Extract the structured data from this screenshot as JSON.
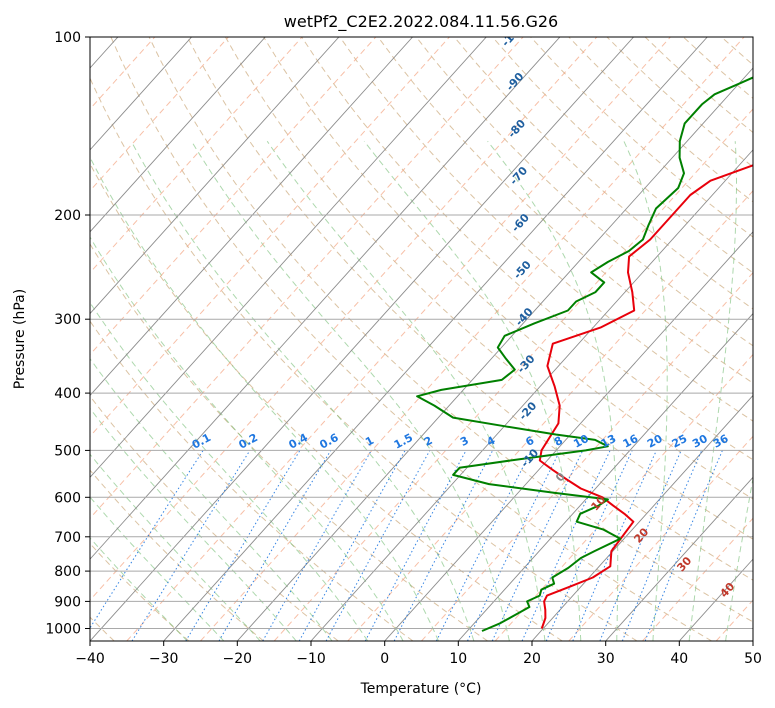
{
  "chart_data": {
    "type": "line",
    "subtype": "skew-t log-p",
    "title": "wetPf2_C2E2.2022.084.11.56.G26",
    "xlabel": "Temperature (°C)",
    "ylabel": "Pressure (hPa)",
    "xlim": [
      -40,
      50
    ],
    "ylim": [
      1050,
      100
    ],
    "yscale": "log",
    "grid": true,
    "x_ticks": [
      -40,
      -30,
      -20,
      -10,
      0,
      10,
      20,
      30,
      40,
      50
    ],
    "y_ticks": [
      100,
      200,
      300,
      400,
      500,
      600,
      700,
      800,
      900,
      1000
    ],
    "dry_adiabat_labels": [
      "-100",
      "-90",
      "-80",
      "-70",
      "-60",
      "-50",
      "-40",
      "-30",
      "-20",
      "-10",
      "0",
      "10",
      "20",
      "30",
      "40"
    ],
    "mixing_ratio_labels": [
      "0.1",
      "0.2",
      "0.4",
      "0.6",
      "1",
      "1.5",
      "2",
      "3",
      "4",
      "6",
      "8",
      "10",
      "13",
      "16",
      "20",
      "25",
      "30",
      "36"
    ],
    "series": [
      {
        "name": "",
        "color": "#e8000b",
        "points": [
          [
            19.8,
            1000
          ],
          [
            19,
            960
          ],
          [
            18,
            930
          ],
          [
            16.8,
            900
          ],
          [
            16.5,
            880
          ],
          [
            18.5,
            850
          ],
          [
            20.5,
            820
          ],
          [
            21.5,
            785
          ],
          [
            19.8,
            740
          ],
          [
            19.5,
            700
          ],
          [
            19.2,
            660
          ],
          [
            17,
            640
          ],
          [
            14.5,
            620
          ],
          [
            12,
            600
          ],
          [
            8,
            580
          ],
          [
            5,
            560
          ],
          [
            2,
            540
          ],
          [
            -1,
            520
          ],
          [
            -2,
            500
          ],
          [
            -3,
            450
          ],
          [
            -5,
            420
          ],
          [
            -8,
            390
          ],
          [
            -11.5,
            360
          ],
          [
            -13.5,
            330
          ],
          [
            -9,
            310
          ],
          [
            -6.5,
            290
          ],
          [
            -9,
            270
          ],
          [
            -12,
            250
          ],
          [
            -13.8,
            235
          ],
          [
            -13,
            220
          ],
          [
            -13,
            200
          ],
          [
            -13,
            185
          ],
          [
            -12,
            175
          ],
          [
            -7,
            162
          ],
          [
            -4.5,
            150
          ],
          [
            -6,
            140
          ],
          [
            -8,
            130
          ],
          [
            -10,
            120
          ],
          [
            -11,
            110
          ],
          [
            -13,
            100
          ]
        ]
      },
      {
        "name": "",
        "color": "#008000",
        "points": [
          [
            12,
            1010
          ],
          [
            13.5,
            980
          ],
          [
            14.5,
            950
          ],
          [
            15.5,
            920
          ],
          [
            14.5,
            900
          ],
          [
            15.5,
            880
          ],
          [
            15,
            860
          ],
          [
            16,
            840
          ],
          [
            15,
            820
          ],
          [
            16,
            790
          ],
          [
            16.5,
            760
          ],
          [
            17.5,
            740
          ],
          [
            19.5,
            705
          ],
          [
            16,
            680
          ],
          [
            11.5,
            660
          ],
          [
            11,
            640
          ],
          [
            12.5,
            620
          ],
          [
            13,
            605
          ],
          [
            5,
            590
          ],
          [
            -5,
            570
          ],
          [
            -11,
            550
          ],
          [
            -11,
            535
          ],
          [
            -5,
            520
          ],
          [
            4,
            500
          ],
          [
            6.5,
            492
          ],
          [
            4,
            480
          ],
          [
            -2,
            470
          ],
          [
            -10,
            455
          ],
          [
            -18,
            440
          ],
          [
            -22,
            420
          ],
          [
            -25.5,
            405
          ],
          [
            -23,
            395
          ],
          [
            -16,
            380
          ],
          [
            -15.5,
            365
          ],
          [
            -18,
            350
          ],
          [
            -20.5,
            335
          ],
          [
            -21,
            320
          ],
          [
            -18.5,
            305
          ],
          [
            -15.5,
            290
          ],
          [
            -15.5,
            280
          ],
          [
            -14,
            270
          ],
          [
            -14,
            260
          ],
          [
            -17,
            250
          ],
          [
            -16,
            240
          ],
          [
            -14.5,
            230
          ],
          [
            -14,
            220
          ],
          [
            -15,
            208
          ],
          [
            -16,
            195
          ],
          [
            -15.5,
            180
          ],
          [
            -16.5,
            170
          ],
          [
            -19,
            160
          ],
          [
            -21,
            150
          ],
          [
            -22.5,
            140
          ],
          [
            -22.5,
            130
          ],
          [
            -22,
            125
          ],
          [
            -20,
            120
          ],
          [
            -18,
            115
          ],
          [
            -17,
            110
          ],
          [
            -15.5,
            105
          ],
          [
            -14,
            100
          ]
        ]
      }
    ]
  }
}
